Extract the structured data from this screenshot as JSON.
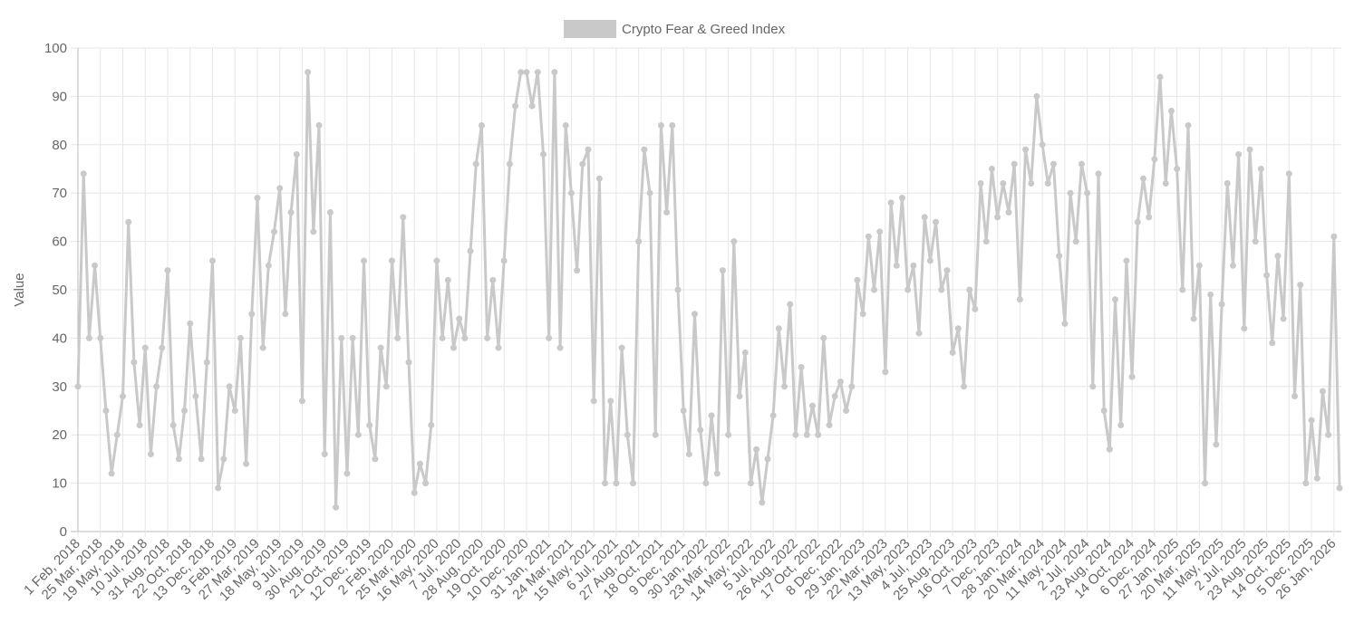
{
  "chart_data": {
    "type": "line",
    "legend_position": "top",
    "ylabel": "Value",
    "ylim": [
      0,
      100
    ],
    "yticks": [
      0,
      10,
      20,
      30,
      40,
      50,
      60,
      70,
      80,
      90,
      100
    ],
    "grid": true,
    "categories": [
      "1 Feb, 2018",
      null,
      null,
      null,
      "25 Mar, 2018",
      null,
      null,
      null,
      "19 May, 2018",
      null,
      null,
      null,
      "10 Jul, 2018",
      null,
      null,
      null,
      "31 Aug, 2018",
      null,
      null,
      null,
      "22 Oct, 2018",
      null,
      null,
      null,
      "13 Dec, 2018",
      null,
      null,
      null,
      "3 Feb, 2019",
      null,
      null,
      null,
      "27 Mar, 2019",
      null,
      null,
      null,
      "18 May, 2019",
      null,
      null,
      null,
      "9 Jul, 2019",
      null,
      null,
      null,
      "30 Aug, 2019",
      null,
      null,
      null,
      "21 Oct, 2019",
      null,
      null,
      null,
      "12 Dec, 2019",
      null,
      null,
      null,
      "2 Feb, 2020",
      null,
      null,
      null,
      "25 Mar, 2020",
      null,
      null,
      null,
      "16 May, 2020",
      null,
      null,
      null,
      "7 Jul, 2020",
      null,
      null,
      null,
      "28 Aug, 2020",
      null,
      null,
      null,
      "19 Oct, 2020",
      null,
      null,
      null,
      "10 Dec, 2020",
      null,
      null,
      null,
      "31 Jan, 2021",
      null,
      null,
      null,
      "24 Mar, 2021",
      null,
      null,
      null,
      "15 May, 2021",
      null,
      null,
      null,
      "6 Jul, 2021",
      null,
      null,
      null,
      "27 Aug, 2021",
      null,
      null,
      null,
      "18 Oct, 2021",
      null,
      null,
      null,
      "9 Dec, 2021",
      null,
      null,
      null,
      "30 Jan, 2022",
      null,
      null,
      null,
      "23 Mar, 2022",
      null,
      null,
      null,
      "14 May, 2022",
      null,
      null,
      null,
      "5 Jul, 2022",
      null,
      null,
      null,
      "26 Aug, 2022",
      null,
      null,
      null,
      "17 Oct, 2022",
      null,
      null,
      null,
      "8 Dec, 2022",
      null,
      null,
      null,
      "29 Jan, 2023",
      null,
      null,
      null,
      "22 Mar, 2023",
      null,
      null,
      null,
      "13 May, 2023",
      null,
      null,
      null,
      "4 Jul, 2023",
      null,
      null,
      null,
      "25 Aug, 2023",
      null,
      null,
      null,
      "16 Oct, 2023",
      null,
      null,
      null,
      "7 Dec, 2023",
      null,
      null,
      null,
      "28 Jan, 2024",
      null,
      null,
      null,
      "20 Mar, 2024",
      null,
      null,
      null,
      "11 May, 2024",
      null,
      null,
      null,
      "2 Jul, 2024",
      null,
      null,
      null,
      "23 Aug, 2024",
      null,
      null,
      null,
      "14 Oct, 2024",
      null,
      null,
      null,
      "6 Dec, 2024",
      null,
      null,
      null,
      "27 Jan, 2025",
      null,
      null,
      null,
      "20 Mar, 2025",
      null,
      null,
      null,
      "11 May, 2025",
      null,
      null,
      null,
      "2 Jul, 2025",
      null,
      null,
      null,
      "23 Aug, 2025",
      null,
      null,
      null,
      "14 Oct, 2025",
      null,
      null,
      null,
      "5 Dec, 2025",
      null,
      null,
      null,
      "26 Jan, 2026",
      null
    ],
    "series": [
      {
        "name": "Crypto Fear & Greed Index",
        "color": "#c9c9c9",
        "values": [
          30,
          74,
          40,
          55,
          40,
          25,
          12,
          20,
          28,
          64,
          35,
          22,
          38,
          16,
          30,
          38,
          54,
          22,
          15,
          25,
          43,
          28,
          15,
          35,
          56,
          9,
          15,
          30,
          25,
          40,
          14,
          45,
          69,
          38,
          55,
          62,
          71,
          45,
          66,
          78,
          27,
          95,
          62,
          84,
          16,
          66,
          5,
          40,
          12,
          40,
          20,
          56,
          22,
          15,
          38,
          30,
          56,
          40,
          65,
          35,
          8,
          14,
          10,
          22,
          56,
          40,
          52,
          38,
          44,
          40,
          58,
          76,
          84,
          40,
          52,
          38,
          56,
          76,
          88,
          95,
          95,
          88,
          95,
          78,
          40,
          95,
          38,
          84,
          70,
          54,
          76,
          79,
          27,
          73,
          10,
          27,
          10,
          38,
          20,
          10,
          60,
          79,
          70,
          20,
          84,
          66,
          84,
          50,
          25,
          16,
          45,
          21,
          10,
          24,
          12,
          54,
          20,
          60,
          28,
          37,
          10,
          17,
          6,
          15,
          24,
          42,
          30,
          47,
          20,
          34,
          20,
          26,
          20,
          40,
          22,
          28,
          31,
          25,
          30,
          52,
          45,
          61,
          50,
          62,
          33,
          68,
          55,
          69,
          50,
          55,
          41,
          65,
          56,
          64,
          50,
          54,
          37,
          42,
          30,
          50,
          46,
          72,
          60,
          75,
          65,
          72,
          66,
          76,
          48,
          79,
          72,
          90,
          80,
          72,
          76,
          57,
          43,
          70,
          60,
          76,
          70,
          30,
          74,
          25,
          17,
          48,
          22,
          56,
          32,
          64,
          73,
          65,
          77,
          94,
          72,
          87,
          75,
          50,
          84,
          44,
          55,
          10,
          49,
          18,
          47,
          72,
          55,
          78,
          42,
          79,
          60,
          75,
          53,
          39,
          57,
          44,
          74,
          28,
          51,
          10,
          23,
          11,
          29,
          20,
          61,
          9
        ]
      }
    ]
  }
}
